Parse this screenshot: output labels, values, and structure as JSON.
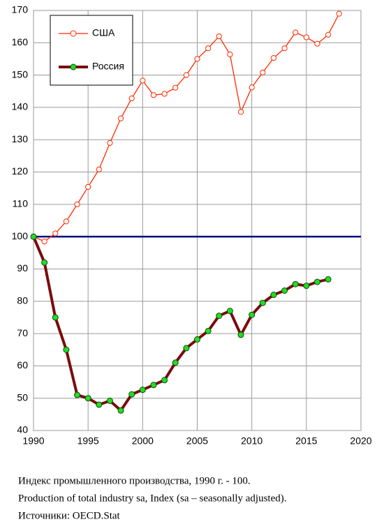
{
  "chart_data": {
    "type": "line",
    "x": [
      1990,
      1991,
      1992,
      1993,
      1994,
      1995,
      1996,
      1997,
      1998,
      1999,
      2000,
      2001,
      2002,
      2003,
      2004,
      2005,
      2006,
      2007,
      2008,
      2009,
      2010,
      2011,
      2012,
      2013,
      2014,
      2015,
      2016,
      2017,
      2018
    ],
    "series": [
      {
        "name": "США",
        "color": "#ff2a00",
        "values": [
          100,
          98.5,
          101,
          104.7,
          110,
          115.4,
          120.8,
          129,
          136.6,
          142.8,
          148.3,
          143.8,
          144.2,
          146.1,
          150,
          155,
          158.3,
          162,
          156.4,
          138.6,
          146.2,
          150.8,
          155.3,
          158.3,
          163.2,
          161.7,
          159.7,
          162.5,
          169
        ]
      },
      {
        "name": "Россия",
        "color": "#7a0c0c",
        "marker_color": "#22dd22",
        "values": [
          100,
          92,
          75,
          65,
          51,
          50,
          48,
          49.2,
          46.2,
          51.2,
          52.6,
          54.1,
          55.6,
          61,
          65.5,
          68.2,
          70.8,
          75.5,
          77,
          69.6,
          75.8,
          79.5,
          82,
          83.3,
          85.3,
          84.8,
          86,
          86.8,
          null
        ]
      }
    ],
    "hline": {
      "value": 100,
      "color": "#000080"
    },
    "xlim": [
      1990,
      2020
    ],
    "xticks": [
      1990,
      1995,
      2000,
      2005,
      2010,
      2015,
      2020
    ],
    "ylim": [
      40,
      170
    ],
    "yticks": [
      40,
      50,
      60,
      70,
      80,
      90,
      100,
      110,
      120,
      130,
      140,
      150,
      160,
      170
    ],
    "grid": true,
    "legend": "top-left",
    "caption": [
      "Индекс промышленного производства, 1990 г. - 100.",
      "Production of total  industry sa, Index (sa – seasonally adjusted).",
      "Источники: OECD.Stat"
    ]
  }
}
